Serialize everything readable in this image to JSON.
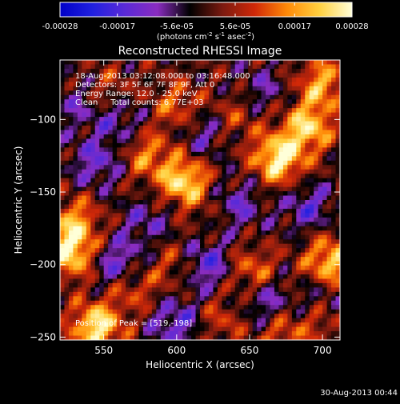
{
  "colorbar": {
    "tick_labels": [
      "-0.00028",
      "-0.00017",
      "-5.6e-05",
      "5.6e-05",
      "0.00017",
      "0.00028"
    ],
    "tick_values": [
      -0.00028,
      -0.00017,
      -5.6e-05,
      5.6e-05,
      0.00017,
      0.00028
    ],
    "range": [
      -0.00028,
      0.00028
    ],
    "unit_main": "(photons cm",
    "unit_sup1": "-2",
    "unit_mid": " s",
    "unit_sup2": "-1",
    "unit_end": " asec",
    "unit_sup3": "-2",
    "unit_close": ")",
    "colors": [
      "#0000c8",
      "#2020e0",
      "#5a2ad8",
      "#8a2cc0",
      "#000000",
      "#7a1a10",
      "#d02808",
      "#ff8a08",
      "#ffd040",
      "#ffffd8"
    ]
  },
  "chart_data": {
    "type": "heatmap",
    "title": "Reconstructed RHESSI Image",
    "xlabel": "Heliocentric X (arcsec)",
    "ylabel": "Heliocentric Y (arcsec)",
    "xlim": [
      520,
      712
    ],
    "ylim": [
      -252,
      -59
    ],
    "x_ticks": [
      550,
      600,
      650,
      700
    ],
    "y_ticks": [
      -250,
      -200,
      -150,
      -100
    ],
    "x_tick_labels": [
      "550",
      "600",
      "650",
      "700"
    ],
    "y_tick_labels": [
      "−250",
      "−200",
      "−150",
      "−100"
    ],
    "hotspots": [
      {
        "x": 545,
        "y": -243,
        "v": 0.00026
      },
      {
        "x": 527,
        "y": -192,
        "v": 0.00024
      },
      {
        "x": 530,
        "y": -170,
        "v": 0.00016
      },
      {
        "x": 570,
        "y": -215,
        "v": 0.00012
      },
      {
        "x": 605,
        "y": -143,
        "v": 0.00024
      },
      {
        "x": 580,
        "y": -125,
        "v": 0.00014
      },
      {
        "x": 600,
        "y": -90,
        "v": 0.00012
      },
      {
        "x": 670,
        "y": -127,
        "v": 0.00027
      },
      {
        "x": 690,
        "y": -105,
        "v": 0.00022
      },
      {
        "x": 700,
        "y": -75,
        "v": 0.00018
      },
      {
        "x": 652,
        "y": -205,
        "v": 0.00014
      },
      {
        "x": 705,
        "y": -198,
        "v": 0.00022
      },
      {
        "x": 672,
        "y": -248,
        "v": 0.00011
      },
      {
        "x": 630,
        "y": -238,
        "v": 9e-05
      },
      {
        "x": 700,
        "y": -238,
        "v": 0.0001
      },
      {
        "x": 640,
        "y": -100,
        "v": 9e-05
      },
      {
        "x": 553,
        "y": -80,
        "v": 8e-05
      },
      {
        "x": 600,
        "y": -200,
        "v": 9e-05
      },
      {
        "x": 630,
        "y": -165,
        "v": 6e-05
      },
      {
        "x": 545,
        "y": -130,
        "v": -0.00012
      },
      {
        "x": 560,
        "y": -200,
        "v": -0.00015
      },
      {
        "x": 620,
        "y": -200,
        "v": -0.00016
      },
      {
        "x": 640,
        "y": -160,
        "v": -0.00014
      },
      {
        "x": 600,
        "y": -240,
        "v": -0.00014
      },
      {
        "x": 660,
        "y": -225,
        "v": -0.00012
      },
      {
        "x": 690,
        "y": -160,
        "v": -0.00012
      },
      {
        "x": 560,
        "y": -100,
        "v": -0.0001
      },
      {
        "x": 620,
        "y": -110,
        "v": -0.0001
      },
      {
        "x": 580,
        "y": -170,
        "v": -9e-05
      },
      {
        "x": 700,
        "y": -225,
        "v": -9e-05
      },
      {
        "x": 530,
        "y": -90,
        "v": -8e-05
      },
      {
        "x": 660,
        "y": -80,
        "v": -8e-05
      }
    ],
    "legend": [
      "18-Aug-2013 03:12:08.000 to 03:16:48.000",
      "Detectors: 3F 5F 6F 7F 8F 9F, Att 0",
      "Energy Range: 12.0 - 25.0 keV",
      "Clean     Total counts: 6.77E+03"
    ],
    "position_label": "Position of Peak = [519,-198]"
  },
  "footer": {
    "timestamp": "30-Aug-2013 00:44"
  }
}
